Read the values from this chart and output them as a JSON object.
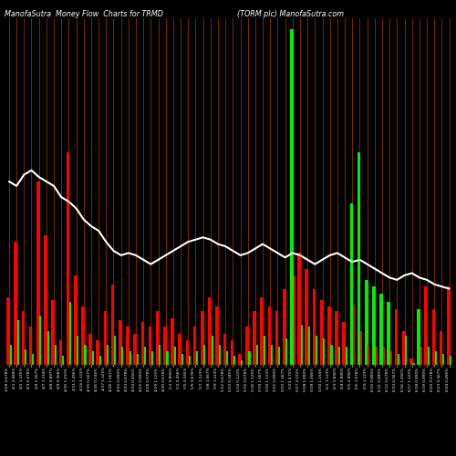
{
  "title_left": "ManofaSutra  Money Flow  Charts for TRMD",
  "title_right": "(TORM plc) ManofaSutra.com",
  "background_color": "#000000",
  "bar_color_red": "#ff0000",
  "bar_color_green": "#00ee00",
  "line_color": "#ffffff",
  "grid_color": "#883300",
  "n_bars": 60,
  "large_bar_heights": [
    3.0,
    5.5,
    2.4,
    1.7,
    8.2,
    5.8,
    2.9,
    1.1,
    9.5,
    4.0,
    2.6,
    1.4,
    1.1,
    2.4,
    3.6,
    2.0,
    1.7,
    1.4,
    1.9,
    1.7,
    2.4,
    1.7,
    2.1,
    1.4,
    1.1,
    1.7,
    2.4,
    3.0,
    2.6,
    1.4,
    1.1,
    0.5,
    1.7,
    2.4,
    3.0,
    2.6,
    2.4,
    3.4,
    15.0,
    5.0,
    4.3,
    3.4,
    2.9,
    2.6,
    2.4,
    1.9,
    7.2,
    9.5,
    3.8,
    3.5,
    3.2,
    2.8,
    2.5,
    1.5,
    0.3,
    2.5,
    3.5,
    2.5,
    1.5,
    3.5
  ],
  "large_bar_colors": [
    "R",
    "R",
    "R",
    "R",
    "R",
    "R",
    "R",
    "R",
    "R",
    "R",
    "R",
    "R",
    "R",
    "R",
    "R",
    "R",
    "R",
    "R",
    "R",
    "R",
    "R",
    "R",
    "R",
    "R",
    "R",
    "R",
    "R",
    "R",
    "R",
    "R",
    "R",
    "R",
    "R",
    "R",
    "R",
    "R",
    "R",
    "R",
    "G",
    "R",
    "R",
    "R",
    "R",
    "R",
    "R",
    "R",
    "G",
    "G",
    "G",
    "G",
    "G",
    "G",
    "R",
    "R",
    "R",
    "G",
    "R",
    "R",
    "R",
    "R"
  ],
  "small_bar_heights": [
    0.9,
    2.0,
    0.7,
    0.5,
    2.2,
    1.5,
    0.9,
    0.4,
    2.8,
    1.3,
    0.9,
    0.6,
    0.4,
    0.9,
    1.3,
    0.8,
    0.6,
    0.5,
    0.8,
    0.6,
    0.9,
    0.6,
    0.8,
    0.5,
    0.4,
    0.6,
    0.9,
    1.3,
    0.9,
    0.6,
    0.4,
    0.2,
    0.6,
    0.9,
    1.3,
    0.9,
    0.8,
    1.2,
    4.0,
    1.8,
    1.7,
    1.3,
    1.2,
    0.9,
    0.8,
    0.8,
    2.7,
    1.5,
    0.9,
    0.8,
    0.8,
    0.6,
    0.5,
    1.3,
    0.1,
    0.8,
    0.8,
    0.6,
    0.5,
    0.4
  ],
  "small_bar_colors": [
    "G",
    "G",
    "G",
    "G",
    "G",
    "G",
    "G",
    "G",
    "G",
    "G",
    "G",
    "G",
    "G",
    "G",
    "G",
    "G",
    "G",
    "G",
    "G",
    "G",
    "G",
    "G",
    "G",
    "G",
    "G",
    "G",
    "G",
    "G",
    "G",
    "G",
    "G",
    "G",
    "G",
    "G",
    "G",
    "G",
    "G",
    "G",
    "R",
    "G",
    "G",
    "G",
    "G",
    "G",
    "G",
    "G",
    "R",
    "R",
    "R",
    "R",
    "R",
    "R",
    "G",
    "G",
    "G",
    "R",
    "G",
    "G",
    "G",
    "G"
  ],
  "white_line": [
    8.2,
    8.0,
    8.5,
    8.7,
    8.4,
    8.2,
    8.0,
    7.5,
    7.3,
    7.0,
    6.5,
    6.2,
    6.0,
    5.5,
    5.1,
    4.9,
    5.0,
    4.9,
    4.7,
    4.5,
    4.7,
    4.9,
    5.1,
    5.3,
    5.5,
    5.6,
    5.7,
    5.6,
    5.4,
    5.3,
    5.1,
    4.9,
    5.0,
    5.2,
    5.4,
    5.2,
    5.0,
    4.8,
    5.0,
    4.9,
    4.7,
    4.5,
    4.7,
    4.9,
    5.0,
    4.8,
    4.6,
    4.7,
    4.5,
    4.3,
    4.1,
    3.9,
    3.8,
    4.0,
    4.1,
    3.9,
    3.8,
    3.6,
    3.5,
    3.4
  ],
  "labels": [
    "3/29 2.678%",
    "4/1 2.689%",
    "4/2 1.235%",
    "4/3 0.678%",
    "4/4 1.567%",
    "4/7 1.234%",
    "4/8 0.897%",
    "4/9 0.456%",
    "4/10 3.210%",
    "4/11 1.456%",
    "4/14 1.123%",
    "4/15 0.567%",
    "4/16 0.234%",
    "4/17 1.123%",
    "4/18 1.567%",
    "4/22 0.890%",
    "4/23 0.678%",
    "4/24 0.456%",
    "4/25 0.890%",
    "4/28 0.678%",
    "4/29 1.123%",
    "4/30 0.678%",
    "5/1 0.890%",
    "5/2 0.456%",
    "5/5 0.345%",
    "5/6 0.678%",
    "5/7 1.123%",
    "5/8 1.567%",
    "5/9 1.123%",
    "5/12 0.678%",
    "5/13 0.345%",
    "5/14 0.123%",
    "5/15 0.678%",
    "5/16 1.123%",
    "5/19 1.567%",
    "5/20 1.123%",
    "5/21 0.890%",
    "5/22 1.567%",
    "5/23 4.75%",
    "5/27 2.012%",
    "5/28 1.890%",
    "5/29 1.456%",
    "5/30 1.234%",
    "6/2 1.123%",
    "6/3 0.890%",
    "6/4 0.890%",
    "6/5 2.890%",
    "6/6 1.678%",
    "6/9 1.123%",
    "6/10 0.890%",
    "6/11 0.890%",
    "6/12 0.678%",
    "6/13 0.567%",
    "6/16 1.456%",
    "6/17 1.123%",
    "6/18 0.890%",
    "6/19 0.890%",
    "6/20 0.678%",
    "6/23 0.567%",
    "6/24 0.456%"
  ]
}
